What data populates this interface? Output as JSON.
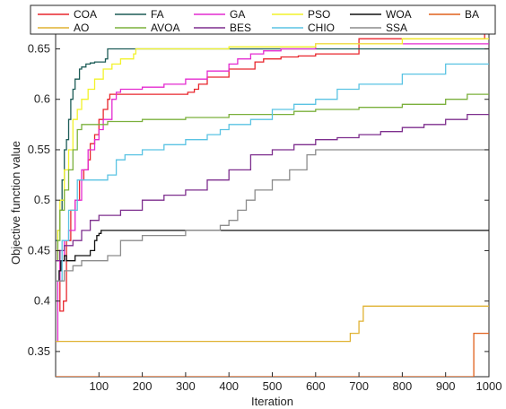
{
  "chart_data": {
    "type": "line",
    "title": "",
    "xlabel": "Iteration",
    "ylabel": "Objective function value",
    "xlim": [
      0,
      1000
    ],
    "ylim": [
      0.325,
      0.67
    ],
    "x_ticks": [
      100,
      200,
      300,
      400,
      500,
      600,
      700,
      800,
      900,
      1000
    ],
    "y_ticks": [
      0.35,
      0.4,
      0.45,
      0.5,
      0.55,
      0.6,
      0.65
    ],
    "x_tick_labels": [
      "100",
      "200",
      "300",
      "400",
      "500",
      "600",
      "700",
      "800",
      "900",
      "1000"
    ],
    "y_tick_labels": [
      "0.35",
      "0.4",
      "0.45",
      "0.5",
      "0.55",
      "0.6",
      "0.65"
    ],
    "grid": false,
    "legend": "top, 6 columns, 2 rows",
    "series": [
      {
        "name": "COA",
        "color": "#e8262d",
        "x": [
          0,
          5,
          10,
          18,
          25,
          35,
          45,
          55,
          65,
          75,
          80,
          90,
          100,
          110,
          120,
          125,
          300,
          305,
          320,
          330,
          350,
          400,
          460,
          480,
          520,
          560,
          600,
          700,
          980,
          990,
          1000
        ],
        "y": [
          0.44,
          0.45,
          0.39,
          0.4,
          0.46,
          0.49,
          0.5,
          0.52,
          0.53,
          0.54,
          0.556,
          0.565,
          0.58,
          0.59,
          0.6,
          0.605,
          0.605,
          0.607,
          0.61,
          0.615,
          0.622,
          0.63,
          0.637,
          0.64,
          0.642,
          0.643,
          0.645,
          0.66,
          0.66,
          0.665,
          0.665
        ]
      },
      {
        "name": "FA",
        "color": "#1d5c57",
        "x": [
          0,
          5,
          10,
          15,
          20,
          25,
          30,
          35,
          40,
          45,
          55,
          60,
          70,
          80,
          90,
          115,
          120,
          1000
        ],
        "y": [
          0.46,
          0.47,
          0.49,
          0.52,
          0.55,
          0.56,
          0.58,
          0.6,
          0.61,
          0.62,
          0.63,
          0.632,
          0.635,
          0.636,
          0.637,
          0.64,
          0.65,
          0.65
        ]
      },
      {
        "name": "GA",
        "color": "#e42bd0",
        "x": [
          0,
          5,
          10,
          20,
          30,
          45,
          60,
          75,
          90,
          100,
          110,
          130,
          140,
          150,
          200,
          250,
          300,
          350,
          400,
          420,
          450,
          480,
          520,
          600,
          1000
        ],
        "y": [
          0.36,
          0.42,
          0.44,
          0.46,
          0.47,
          0.5,
          0.53,
          0.55,
          0.56,
          0.57,
          0.58,
          0.6,
          0.607,
          0.61,
          0.612,
          0.615,
          0.62,
          0.628,
          0.635,
          0.64,
          0.645,
          0.648,
          0.65,
          0.655,
          0.655
        ]
      },
      {
        "name": "PSO",
        "color": "#f2f22a",
        "x": [
          0,
          5,
          10,
          20,
          30,
          40,
          50,
          60,
          75,
          90,
          110,
          130,
          150,
          180,
          185,
          400,
          600,
          800,
          1000
        ],
        "y": [
          0.45,
          0.47,
          0.5,
          0.53,
          0.55,
          0.58,
          0.59,
          0.6,
          0.61,
          0.62,
          0.63,
          0.635,
          0.64,
          0.645,
          0.65,
          0.652,
          0.655,
          0.66,
          0.66
        ]
      },
      {
        "name": "WOA",
        "color": "#111111",
        "x": [
          0,
          8,
          12,
          20,
          25,
          45,
          70,
          80,
          90,
          95,
          100,
          105,
          1000
        ],
        "y": [
          0.42,
          0.43,
          0.44,
          0.445,
          0.44,
          0.445,
          0.445,
          0.45,
          0.46,
          0.465,
          0.467,
          0.47,
          0.47
        ]
      },
      {
        "name": "BA",
        "color": "#e0601c",
        "x": [
          0,
          960,
          965,
          1000
        ],
        "y": [
          0.325,
          0.325,
          0.368,
          0.368
        ]
      },
      {
        "name": "AO",
        "color": "#e0b232",
        "x": [
          0,
          5,
          670,
          680,
          700,
          710,
          1000
        ],
        "y": [
          0.36,
          0.36,
          0.36,
          0.368,
          0.38,
          0.395,
          0.395
        ]
      },
      {
        "name": "AVOA",
        "color": "#7bb03c",
        "x": [
          0,
          5,
          10,
          20,
          30,
          40,
          50,
          60,
          80,
          120,
          200,
          300,
          400,
          500,
          550,
          600,
          700,
          800,
          900,
          950,
          1000
        ],
        "y": [
          0.44,
          0.46,
          0.49,
          0.51,
          0.53,
          0.55,
          0.57,
          0.575,
          0.575,
          0.578,
          0.58,
          0.582,
          0.585,
          0.585,
          0.588,
          0.59,
          0.592,
          0.595,
          0.6,
          0.605,
          0.605
        ]
      },
      {
        "name": "BES",
        "color": "#7e2f8e",
        "x": [
          0,
          10,
          20,
          40,
          60,
          80,
          100,
          150,
          200,
          250,
          300,
          350,
          400,
          450,
          500,
          550,
          600,
          650,
          700,
          750,
          800,
          850,
          900,
          950,
          1000
        ],
        "y": [
          0.44,
          0.45,
          0.455,
          0.46,
          0.47,
          0.48,
          0.485,
          0.49,
          0.5,
          0.505,
          0.51,
          0.52,
          0.53,
          0.545,
          0.55,
          0.555,
          0.56,
          0.562,
          0.565,
          0.568,
          0.572,
          0.575,
          0.58,
          0.585,
          0.585
        ]
      },
      {
        "name": "CHIO",
        "color": "#5ac3e3",
        "x": [
          0,
          15,
          30,
          50,
          80,
          120,
          140,
          160,
          200,
          250,
          300,
          350,
          380,
          400,
          450,
          500,
          550,
          600,
          650,
          700,
          800,
          900,
          1000
        ],
        "y": [
          0.42,
          0.46,
          0.49,
          0.52,
          0.52,
          0.525,
          0.54,
          0.545,
          0.55,
          0.555,
          0.56,
          0.565,
          0.57,
          0.575,
          0.58,
          0.59,
          0.595,
          0.6,
          0.61,
          0.615,
          0.625,
          0.635,
          0.635
        ]
      },
      {
        "name": "SSA",
        "color": "#8c8c8c",
        "x": [
          0,
          20,
          40,
          60,
          80,
          120,
          150,
          200,
          300,
          380,
          400,
          420,
          440,
          460,
          500,
          540,
          580,
          600,
          700,
          800,
          1000
        ],
        "y": [
          0.42,
          0.43,
          0.435,
          0.44,
          0.44,
          0.445,
          0.46,
          0.465,
          0.47,
          0.475,
          0.48,
          0.49,
          0.5,
          0.51,
          0.52,
          0.53,
          0.545,
          0.55,
          0.55,
          0.55,
          0.55
        ]
      }
    ]
  }
}
